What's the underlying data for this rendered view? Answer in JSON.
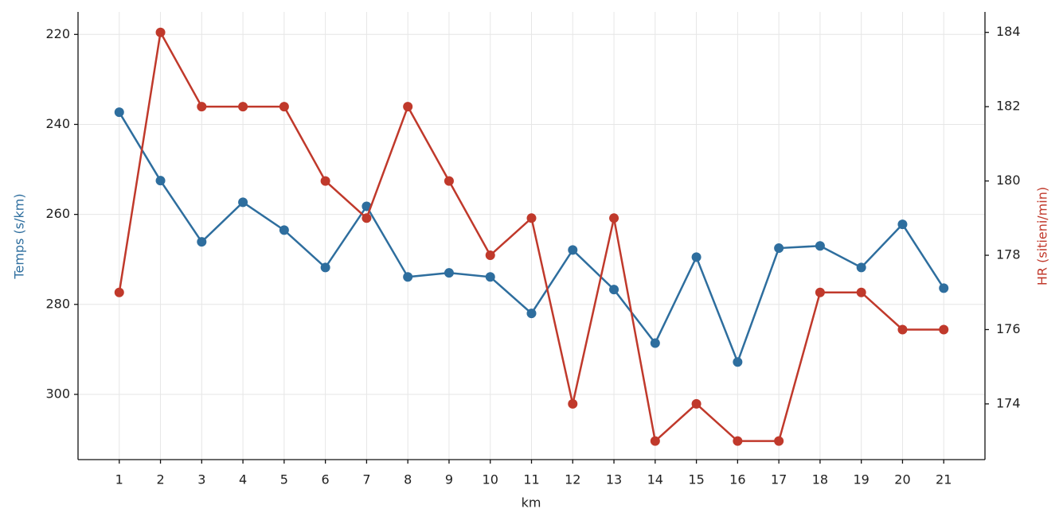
{
  "chart_data": {
    "type": "line",
    "x_label": "km",
    "y_label": "Temps (s/km)",
    "y2_label": "HR (sitieni/min)",
    "x": [
      1,
      2,
      3,
      4,
      5,
      6,
      7,
      8,
      9,
      10,
      11,
      12,
      13,
      14,
      15,
      16,
      17,
      18,
      19,
      20,
      21
    ],
    "xlim": [
      0,
      22
    ],
    "xticks": [
      1,
      2,
      3,
      4,
      5,
      6,
      7,
      8,
      9,
      10,
      11,
      12,
      13,
      14,
      15,
      16,
      17,
      18,
      19,
      20,
      21
    ],
    "ylim": [
      314.5,
      215
    ],
    "yticks": [
      220,
      240,
      260,
      280,
      300
    ],
    "y2lim": [
      172.5,
      184.55
    ],
    "y2ticks": [
      174,
      176,
      178,
      180,
      182,
      184
    ],
    "grid": true,
    "series": [
      {
        "name": "Temps (s/km)",
        "color": "#2e6e9e",
        "values": [
          237.3,
          252.5,
          266.1,
          257.3,
          263.5,
          271.8,
          258.2,
          273.9,
          273.0,
          273.9,
          282.0,
          267.9,
          276.7,
          288.6,
          269.5,
          292.8,
          267.5,
          267.0,
          271.8,
          262.2,
          276.4
        ]
      },
      {
        "name": "HR (sitieni/min)",
        "color": "#c0392b",
        "axis": "y2",
        "values": [
          177,
          184,
          182,
          182,
          182,
          180,
          179,
          182,
          180,
          178,
          179,
          174,
          179,
          173,
          174,
          173,
          173,
          177,
          177,
          176,
          176
        ]
      }
    ]
  }
}
